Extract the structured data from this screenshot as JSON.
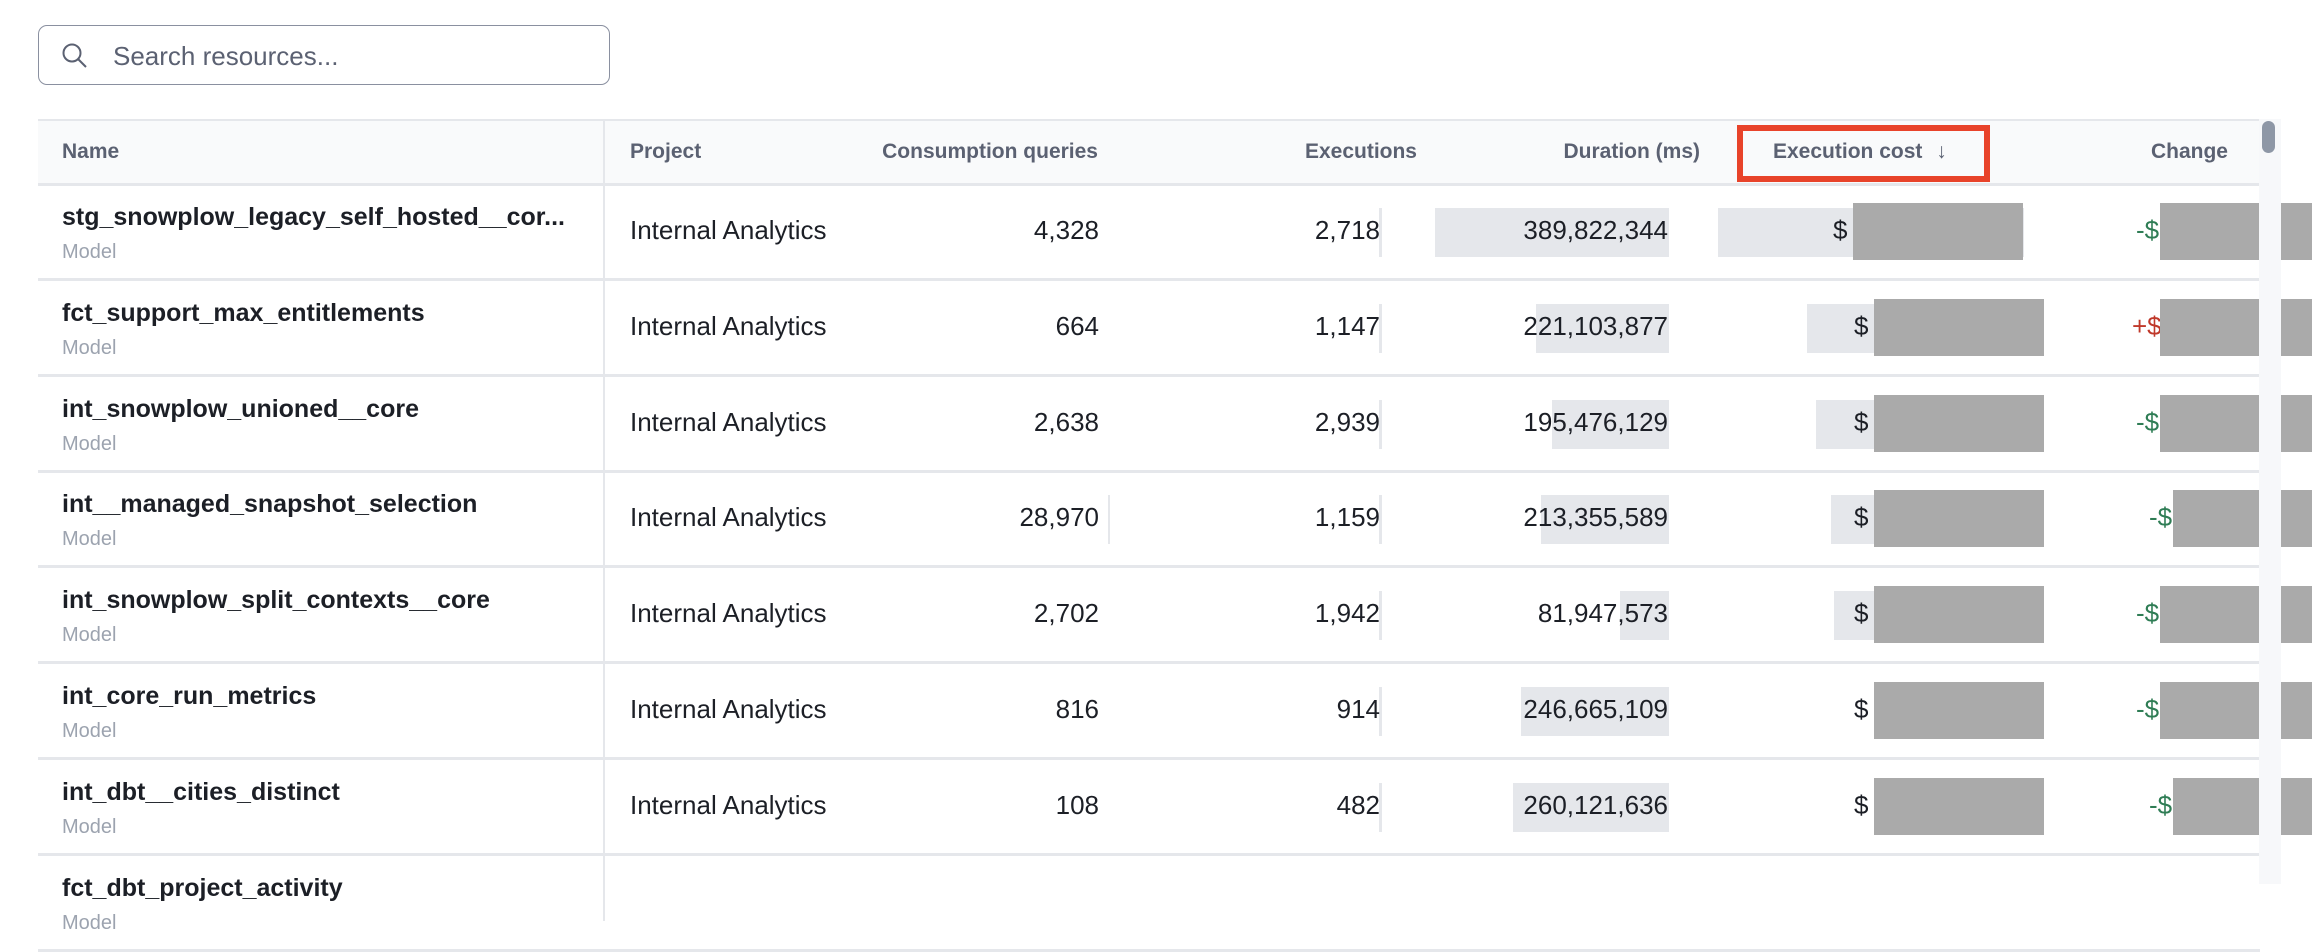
{
  "search": {
    "placeholder": "Search resources...",
    "icon": "search-icon"
  },
  "columns": {
    "name": "Name",
    "project": "Project",
    "consumption_queries": "Consumption queries",
    "executions": "Executions",
    "duration": "Duration (ms)",
    "execution_cost": "Execution cost",
    "execution_cost_sort": "↓",
    "change": "Change"
  },
  "colors": {
    "highlight": "#e8432a",
    "negative_change": "#2f7d55",
    "positive_change": "#c0392b",
    "redaction": "#aaaaaa",
    "bar": "#e5e7eb"
  },
  "rows": [
    {
      "name": "stg_snowplow_legacy_self_hosted__cor...",
      "type": "Model",
      "project": "Internal Analytics",
      "consumption_queries": "4,328",
      "executions": "2,718",
      "duration": "389,822,344",
      "duration_value": 389822344,
      "cost_prefix": "$",
      "cost_bar_fraction": 1.0,
      "change_prefix": "-$"
    },
    {
      "name": "fct_support_max_entitlements",
      "type": "Model",
      "project": "Internal Analytics",
      "consumption_queries": "664",
      "executions": "1,147",
      "duration": "221,103,877",
      "duration_value": 221103877,
      "cost_prefix": "$",
      "cost_bar_fraction": 0.71,
      "change_prefix": "+$"
    },
    {
      "name": "int_snowplow_unioned__core",
      "type": "Model",
      "project": "Internal Analytics",
      "consumption_queries": "2,638",
      "executions": "2,939",
      "duration": "195,476,129",
      "duration_value": 195476129,
      "cost_prefix": "$",
      "cost_bar_fraction": 0.68,
      "change_prefix": "-$"
    },
    {
      "name": "int__managed_snapshot_selection",
      "type": "Model",
      "project": "Internal Analytics",
      "consumption_queries": "28,970",
      "executions": "1,159",
      "duration": "213,355,589",
      "duration_value": 213355589,
      "cost_prefix": "$",
      "cost_bar_fraction": 0.63,
      "change_prefix": "-$"
    },
    {
      "name": "int_snowplow_split_contexts__core",
      "type": "Model",
      "project": "Internal Analytics",
      "consumption_queries": "2,702",
      "executions": "1,942",
      "duration": "81,947,573",
      "duration_value": 81947573,
      "cost_prefix": "$",
      "cost_bar_fraction": 0.62,
      "change_prefix": "-$"
    },
    {
      "name": "int_core_run_metrics",
      "type": "Model",
      "project": "Internal Analytics",
      "consumption_queries": "816",
      "executions": "914",
      "duration": "246,665,109",
      "duration_value": 246665109,
      "cost_prefix": "$",
      "change_prefix": "-$"
    },
    {
      "name": "int_dbt__cities_distinct",
      "type": "Model",
      "project": "Internal Analytics",
      "consumption_queries": "108",
      "executions": "482",
      "duration": "260,121,636",
      "duration_value": 260121636,
      "cost_prefix": "$",
      "change_prefix": "-$"
    },
    {
      "name": "fct_dbt_project_activity",
      "type": "Model"
    }
  ]
}
